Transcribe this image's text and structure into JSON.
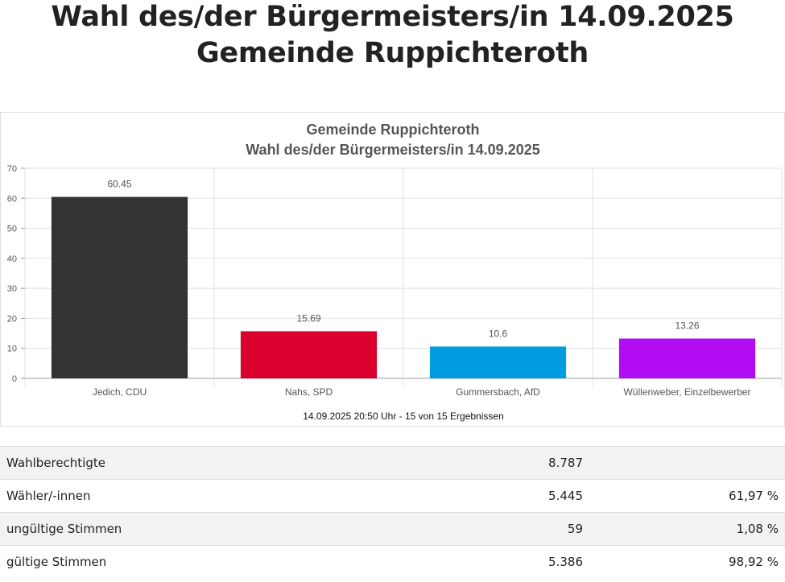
{
  "page": {
    "title_line1": "Wahl des/der Bürgermeisters/in 14.09.2025",
    "title_line2": "Gemeinde Ruppichteroth"
  },
  "chart_data": {
    "type": "bar",
    "title": "Gemeinde Ruppichteroth",
    "subtitle": "Wahl des/der Bürgermeisters/in 14.09.2025",
    "categories": [
      "Jedich, CDU",
      "Nahs, SPD",
      "Gummersbach, AfD",
      "Wüllenweber, Einzelbewerber"
    ],
    "values": [
      60.45,
      15.69,
      10.6,
      13.26
    ],
    "value_labels": [
      "60.45",
      "15.69",
      "10.6",
      "13.26"
    ],
    "colors": [
      "#333333",
      "#d9002d",
      "#009ee0",
      "#b10cf2"
    ],
    "ylim": [
      0,
      70
    ],
    "yticks": [
      0,
      10,
      20,
      30,
      40,
      50,
      60,
      70
    ],
    "grid": true,
    "xlabel": "",
    "ylabel": "",
    "footnote": "14.09.2025 20:50 Uhr - 15 von 15 Ergebnissen"
  },
  "results": [
    {
      "label": "Wahlberechtigte",
      "count": "8.787",
      "percent": ""
    },
    {
      "label": "Wähler/-innen",
      "count": "5.445",
      "percent": "61,97 %"
    },
    {
      "label": "ungültige Stimmen",
      "count": "59",
      "percent": "1,08 %"
    },
    {
      "label": "gültige Stimmen",
      "count": "5.386",
      "percent": "98,92 %"
    }
  ]
}
